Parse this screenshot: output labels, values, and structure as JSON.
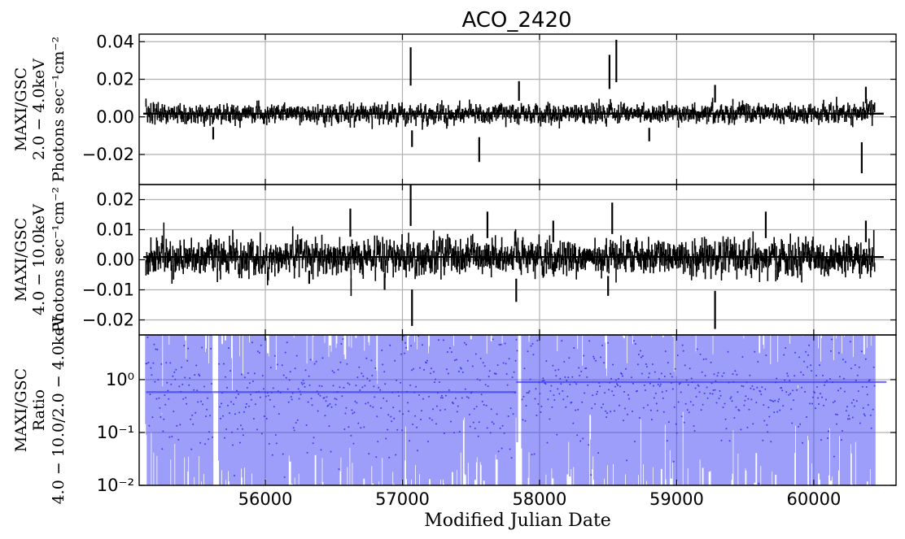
{
  "chart_data": {
    "title": "ACO_2420",
    "xlabel": "Modified Julian Date",
    "xlim": [
      55080,
      60600
    ],
    "x_ticks": [
      56000,
      57000,
      58000,
      59000,
      60000
    ],
    "x_tick_labels": [
      "56000",
      "57000",
      "58000",
      "59000",
      "60000"
    ],
    "grid": true,
    "panels": [
      {
        "type": "line",
        "ylabel_lines": [
          "MAXI/GSC",
          "2.0 − 4.0keV",
          "Photons sec⁻¹cm⁻²"
        ],
        "ylim": [
          -0.036,
          0.044
        ],
        "y_ticks": [
          -0.02,
          0.0,
          0.02,
          0.04
        ],
        "y_tick_labels": [
          "−0.02",
          "0.00",
          "0.02",
          "0.04"
        ],
        "color": "#000000",
        "mean_level": 0.0017,
        "noise_amplitude": 0.0035,
        "x_start": 55130,
        "x_end": 60450,
        "n_bins": 900,
        "spikes": [
          {
            "x": 55620,
            "y": -0.012
          },
          {
            "x": 57060,
            "y": 0.037
          },
          {
            "x": 57070,
            "y": -0.016
          },
          {
            "x": 57560,
            "y": -0.024
          },
          {
            "x": 57850,
            "y": 0.019
          },
          {
            "x": 58510,
            "y": 0.033
          },
          {
            "x": 58560,
            "y": 0.041
          },
          {
            "x": 58800,
            "y": -0.013
          },
          {
            "x": 59280,
            "y": 0.017
          },
          {
            "x": 60350,
            "y": -0.03
          },
          {
            "x": 60380,
            "y": 0.016
          }
        ]
      },
      {
        "type": "line",
        "ylabel_lines": [
          "MAXI/GSC",
          "4.0 − 10.0keV",
          "Photons sec⁻¹cm⁻²"
        ],
        "ylim": [
          -0.025,
          0.025
        ],
        "y_ticks": [
          -0.02,
          -0.01,
          0.0,
          0.01,
          0.02
        ],
        "y_tick_labels": [
          "−0.02",
          "−0.01",
          "0.00",
          "0.01",
          "0.02"
        ],
        "color": "#000000",
        "mean_level": 0.0009,
        "noise_amplitude": 0.004,
        "x_start": 55130,
        "x_end": 60450,
        "n_bins": 900,
        "spikes": [
          {
            "x": 56320,
            "y": -0.008
          },
          {
            "x": 56620,
            "y": 0.017
          },
          {
            "x": 56870,
            "y": -0.01
          },
          {
            "x": 57060,
            "y": 0.025
          },
          {
            "x": 57070,
            "y": -0.022
          },
          {
            "x": 57620,
            "y": 0.016
          },
          {
            "x": 57830,
            "y": -0.014
          },
          {
            "x": 58100,
            "y": 0.013
          },
          {
            "x": 58500,
            "y": -0.012
          },
          {
            "x": 58530,
            "y": 0.019
          },
          {
            "x": 59280,
            "y": -0.023
          },
          {
            "x": 59650,
            "y": 0.016
          },
          {
            "x": 60380,
            "y": 0.013
          }
        ]
      },
      {
        "type": "scatter",
        "ylabel_lines": [
          "MAXI/GSC",
          "Ratio",
          "4.0 − 10.0/2.0 − 4.0keV"
        ],
        "y_scale": "log",
        "ylim": [
          0.01,
          7
        ],
        "y_ticks": [
          0.01,
          0.1,
          1
        ],
        "y_tick_labels": [
          "10⁻²",
          "10⁻¹",
          "10⁰"
        ],
        "color": "#3b3bf5",
        "x_start": 55130,
        "x_end": 60450,
        "n_bins": 900,
        "mean_ratio_levels": [
          {
            "x_from": 55130,
            "x_to": 57830,
            "y": 0.58
          },
          {
            "x_from": 57830,
            "y": 0.9,
            "x_to": 60530
          }
        ],
        "gaps": [
          [
            55620,
            55660
          ],
          [
            57840,
            57870
          ]
        ]
      }
    ]
  }
}
